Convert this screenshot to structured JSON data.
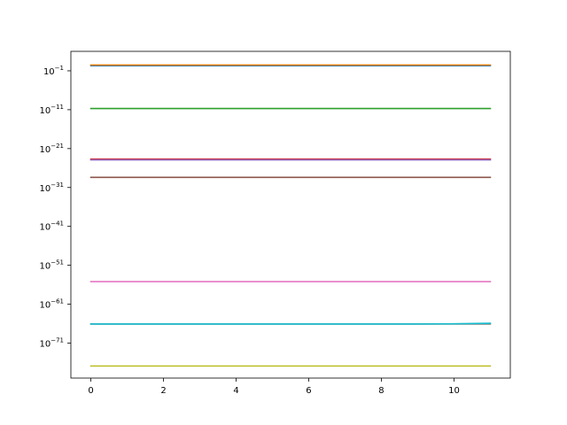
{
  "chart_data": {
    "type": "line",
    "title": "",
    "xlabel": "",
    "ylabel": "",
    "yscale": "log",
    "xlim": [
      -0.55,
      11.55
    ],
    "ylim_exp": [
      -80,
      4
    ],
    "grid": false,
    "legend": "none",
    "x": [
      0,
      1,
      2,
      3,
      4,
      5,
      6,
      7,
      8,
      9,
      10,
      11
    ],
    "x_ticks": [
      0,
      2,
      4,
      6,
      8,
      10
    ],
    "x_tick_labels": [
      "0",
      "2",
      "4",
      "6",
      "8",
      "10"
    ],
    "y_ticks_exp": [
      -1,
      -11,
      -21,
      -31,
      -41,
      -51,
      -61,
      -71
    ],
    "y_tick_labels": [
      "10^-1",
      "10^-11",
      "10^-21",
      "10^-31",
      "10^-41",
      "10^-51",
      "10^-61",
      "10^-71"
    ],
    "y_tick_base": "10",
    "y_tick_exponents": [
      "−1",
      "−11",
      "−21",
      "−31",
      "−41",
      "−51",
      "−61",
      "−71"
    ],
    "series": [
      {
        "color": "#1f77b4",
        "log10_values": [
          0.3,
          0.3,
          0.3,
          0.3,
          0.3,
          0.3,
          0.3,
          0.3,
          0.3,
          0.3,
          0.3,
          0.3
        ]
      },
      {
        "color": "#ff7f0e",
        "log10_values": [
          0.5,
          0.5,
          0.5,
          0.5,
          0.5,
          0.5,
          0.5,
          0.5,
          0.5,
          0.5,
          0.5,
          0.5
        ]
      },
      {
        "color": "#2ca02c",
        "log10_values": [
          -10.7,
          -10.7,
          -10.7,
          -10.7,
          -10.7,
          -10.7,
          -10.7,
          -10.7,
          -10.7,
          -10.7,
          -10.7,
          -10.7
        ]
      },
      {
        "color": "#d62728",
        "log10_values": [
          -23.7,
          -23.7,
          -23.7,
          -23.7,
          -23.7,
          -23.7,
          -23.7,
          -23.7,
          -23.7,
          -23.7,
          -23.7,
          -23.7
        ]
      },
      {
        "color": "#9467bd",
        "log10_values": [
          -23.9,
          -23.9,
          -23.9,
          -23.9,
          -23.9,
          -23.9,
          -23.9,
          -23.9,
          -23.9,
          -23.9,
          -23.9,
          -23.9
        ]
      },
      {
        "color": "#8c564b",
        "log10_values": [
          -28.4,
          -28.4,
          -28.4,
          -28.4,
          -28.4,
          -28.4,
          -28.4,
          -28.4,
          -28.4,
          -28.4,
          -28.4,
          -28.4
        ]
      },
      {
        "color": "#e377c2",
        "log10_values": [
          -55.2,
          -55.2,
          -55.2,
          -55.2,
          -55.2,
          -55.2,
          -55.2,
          -55.2,
          -55.2,
          -55.2,
          -55.2,
          -55.2
        ]
      },
      {
        "color": "#7f7f7f",
        "log10_values": [
          -66.1,
          -66.1,
          -66.1,
          -66.1,
          -66.1,
          -66.1,
          -66.1,
          -66.1,
          -66.1,
          -66.1,
          -66.1,
          -66.1
        ]
      },
      {
        "color": "#bcbd22",
        "log10_values": [
          -76.9,
          -76.9,
          -76.9,
          -76.9,
          -76.9,
          -76.9,
          -76.9,
          -76.9,
          -76.9,
          -76.9,
          -76.9,
          -76.9
        ]
      },
      {
        "color": "#17becf",
        "log10_values": [
          -66.1,
          -66.1,
          -66.1,
          -66.1,
          -66.1,
          -66.1,
          -66.1,
          -66.1,
          -66.1,
          -66.1,
          -66.05,
          -65.9
        ]
      }
    ]
  }
}
